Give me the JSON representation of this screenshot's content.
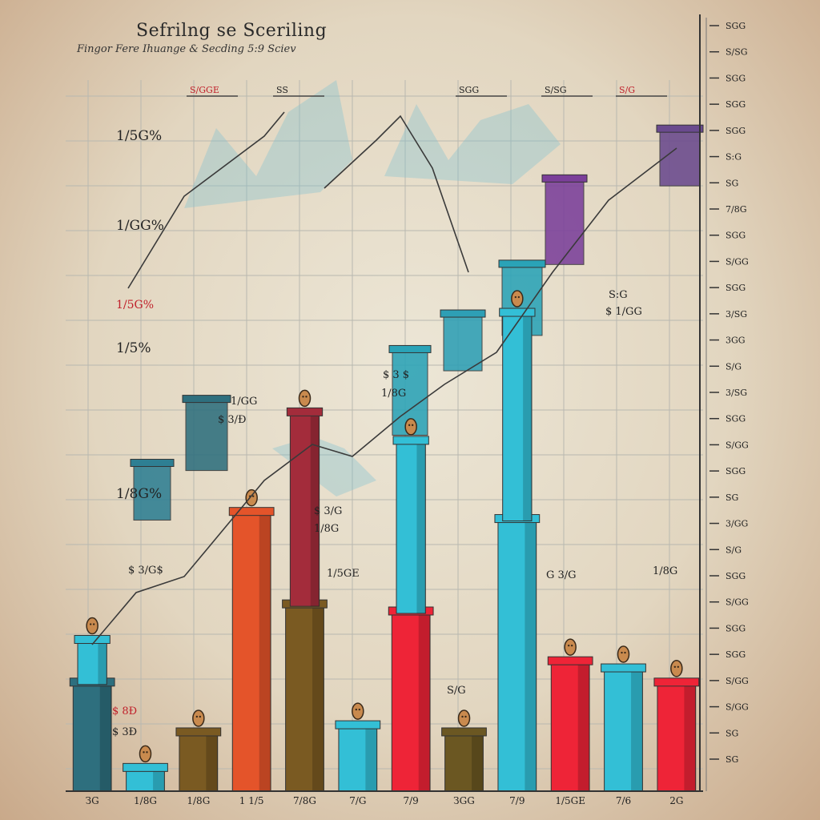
{
  "chart_data": {
    "type": "bar",
    "title": "Sefrilng se Sceriling",
    "subtitle": "Fingor Fere Ihuange & Secding 5:9 Sciev",
    "categories": [
      "ЗG",
      "1/8G",
      "1/8G",
      "1 1/5",
      "7/8G",
      "7/G",
      "7/9",
      "ЗGG",
      "7/9",
      "1/5GE",
      "7/6",
      "2G"
    ],
    "ylim": [
      0,
      100
    ],
    "right_axis_ticks": [
      "SGG",
      "S/SG",
      "SGG",
      "SGG",
      "SGG",
      "S:G",
      "SG",
      "7/8G",
      "SGG",
      "S/GG",
      "SGG",
      "3/SG",
      "3GG",
      "S/G",
      "3/SG",
      "SGG",
      "S/GG",
      "SGG",
      "SG",
      "3/GG",
      "S/G",
      "SGG",
      "S/GG",
      "SGG",
      "SGG",
      "S/GG",
      "S/GG",
      "SG",
      "SG"
    ],
    "left_axis_labels": [
      "1/5G%",
      "1/GG%",
      "1/5%",
      "1/8G%",
      "1/5G%"
    ],
    "top_labels": [
      "S/GGE",
      "SS",
      "SGG",
      "S/SG",
      "S/G"
    ],
    "series": [
      {
        "values": [
          15,
          3,
          8,
          39,
          26,
          9,
          25,
          8,
          38,
          18,
          17,
          15
        ],
        "colors": [
          "#2e6f7e",
          "#33bfd6",
          "#7a5a22",
          "#e4542a",
          "#7a5a22",
          "#33bfd6",
          "#ee2437",
          "#6b5722",
          "#33bfd6",
          "#ee2437",
          "#33bfd6",
          "#ee2437"
        ]
      },
      {
        "values": [
          6,
          0,
          0,
          0,
          27,
          0,
          24,
          0,
          29,
          0,
          0,
          0
        ],
        "colors": [
          "#33bfd6",
          "#33bfd6",
          "#33bfd6",
          "#33bfd6",
          "#a32c3b",
          "#33bfd6",
          "#33bfd6",
          "#33bfd6",
          "#33bfd6",
          "#33bfd6",
          "#33bfd6",
          "#33bfd6"
        ]
      }
    ],
    "upper_bars": [
      {
        "value": 46,
        "color": "#2e7f93"
      },
      {
        "value": 55,
        "color": "#2e6f7e"
      },
      {
        "value": 62,
        "color": "#2aa3b7"
      },
      {
        "value": 67,
        "color": "#2e9fb5"
      },
      {
        "value": 74,
        "color": "#2aa3b7"
      },
      {
        "value": 86,
        "color": "#7b3f9a"
      },
      {
        "value": 93,
        "color": "#6a4a8e"
      }
    ],
    "annotations": [
      "$ 8Ð",
      "$ 3Ð",
      "$ 3/G$",
      "1/GG",
      "$ 3/Ð",
      "$ 3 $",
      "1/8G",
      "S:G",
      "$ 1/GG",
      "$ 3/G",
      "1/8G",
      "1/5GE",
      "G 3/G",
      "1/8G",
      "S/G"
    ]
  }
}
